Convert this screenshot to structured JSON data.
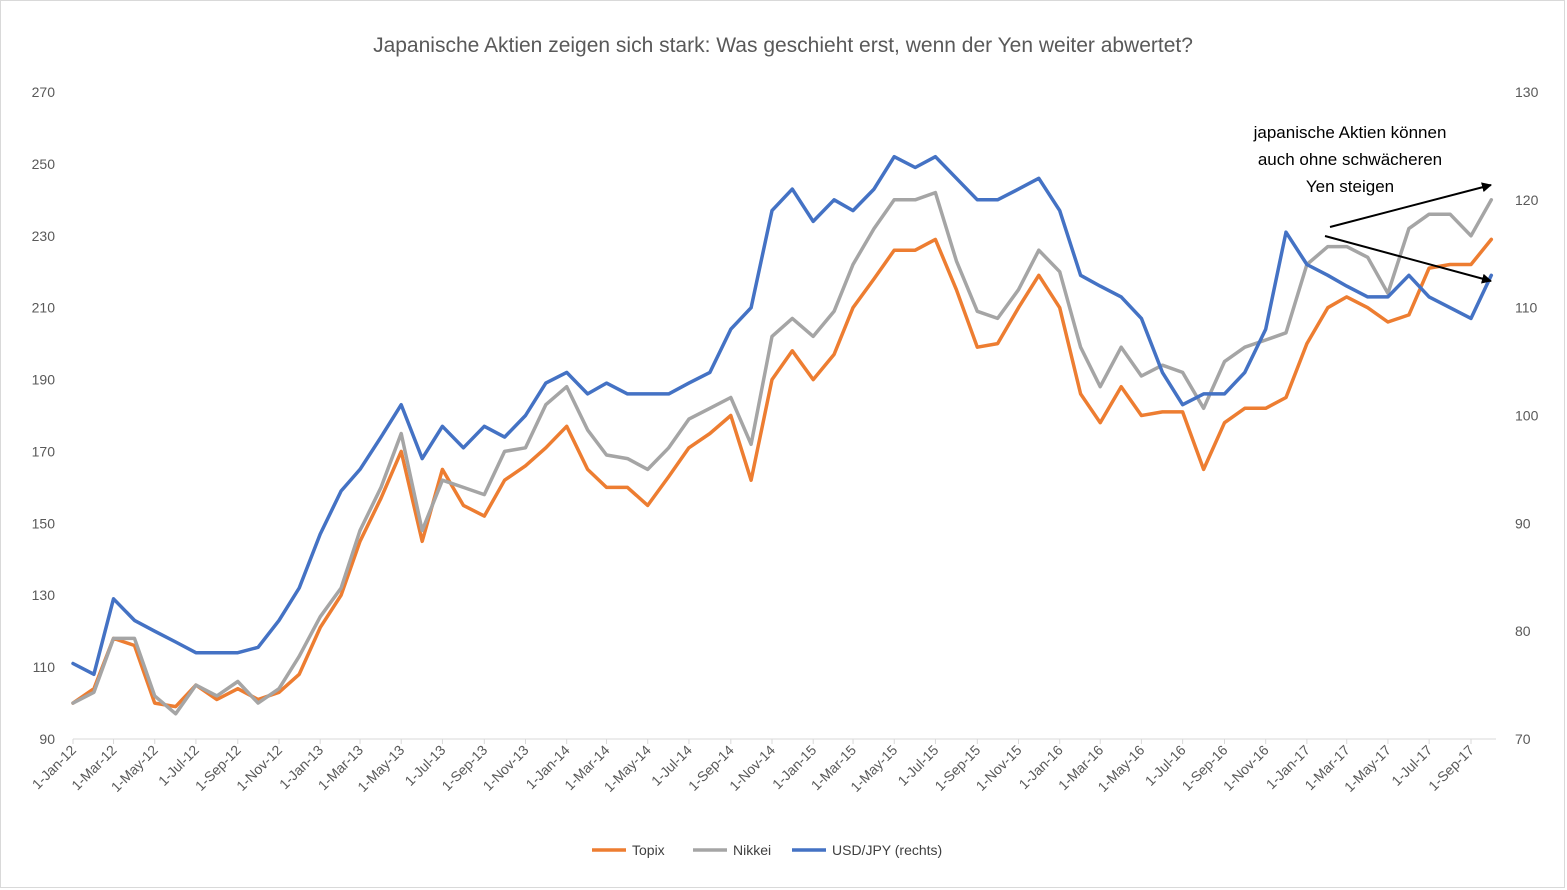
{
  "chart_data": {
    "type": "line",
    "title": "Japanische Aktien zeigen sich stark: Was geschieht erst, wenn der Yen weiter abwertet?",
    "xlabel": "",
    "ylabel": "",
    "ylim": [
      90,
      270
    ],
    "y2lim": [
      70,
      130
    ],
    "yticks": [
      90,
      110,
      130,
      150,
      170,
      190,
      210,
      230,
      250,
      270
    ],
    "y2ticks": [
      70,
      80,
      90,
      100,
      110,
      120,
      130
    ],
    "xticks": [
      "1-Jan-12",
      "1-Mar-12",
      "1-May-12",
      "1-Jul-12",
      "1-Sep-12",
      "1-Nov-12",
      "1-Jan-13",
      "1-Mar-13",
      "1-May-13",
      "1-Jul-13",
      "1-Sep-13",
      "1-Nov-13",
      "1-Jan-14",
      "1-Mar-14",
      "1-May-14",
      "1-Jul-14",
      "1-Sep-14",
      "1-Nov-14",
      "1-Jan-15",
      "1-Mar-15",
      "1-May-15",
      "1-Jul-15",
      "1-Sep-15",
      "1-Nov-15",
      "1-Jan-16",
      "1-Mar-16",
      "1-May-16",
      "1-Jul-16",
      "1-Sep-16",
      "1-Nov-16",
      "1-Jan-17",
      "1-Mar-17",
      "1-May-17",
      "1-Jul-17",
      "1-Sep-17"
    ],
    "x_dates": [
      "2012-01-01",
      "2012-02-01",
      "2012-03-01",
      "2012-04-01",
      "2012-05-01",
      "2012-06-01",
      "2012-07-01",
      "2012-08-01",
      "2012-09-01",
      "2012-10-01",
      "2012-11-01",
      "2012-12-01",
      "2013-01-01",
      "2013-02-01",
      "2013-03-01",
      "2013-04-01",
      "2013-05-01",
      "2013-06-01",
      "2013-07-01",
      "2013-08-01",
      "2013-09-01",
      "2013-10-01",
      "2013-11-01",
      "2013-12-01",
      "2014-01-01",
      "2014-02-01",
      "2014-03-01",
      "2014-04-01",
      "2014-05-01",
      "2014-06-01",
      "2014-07-01",
      "2014-08-01",
      "2014-09-01",
      "2014-10-01",
      "2014-11-01",
      "2014-12-01",
      "2015-01-01",
      "2015-02-01",
      "2015-03-01",
      "2015-04-01",
      "2015-05-01",
      "2015-06-01",
      "2015-07-01",
      "2015-08-01",
      "2015-09-01",
      "2015-10-01",
      "2015-11-01",
      "2015-12-01",
      "2016-01-01",
      "2016-02-01",
      "2016-03-01",
      "2016-04-01",
      "2016-05-01",
      "2016-06-01",
      "2016-07-01",
      "2016-08-01",
      "2016-09-01",
      "2016-10-01",
      "2016-11-01",
      "2016-12-01",
      "2017-01-01",
      "2017-02-01",
      "2017-03-01",
      "2017-04-01",
      "2017-05-01",
      "2017-06-01",
      "2017-07-01",
      "2017-08-01",
      "2017-09-01",
      "2017-10-01"
    ],
    "series": [
      {
        "name": "Topix",
        "color": "#ED7D31",
        "axis": "left",
        "values": [
          100,
          104,
          118,
          116,
          100,
          99,
          105,
          101,
          104,
          101,
          103,
          108,
          121,
          130,
          145,
          157,
          170,
          145,
          165,
          155,
          152,
          162,
          166,
          171,
          177,
          165,
          160,
          160,
          155,
          163,
          171,
          175,
          180,
          162,
          190,
          198,
          190,
          197,
          210,
          218,
          226,
          226,
          229,
          215,
          199,
          200,
          210,
          219,
          210,
          186,
          178,
          188,
          180,
          181,
          181,
          165,
          178,
          182,
          182,
          185,
          200,
          210,
          213,
          210,
          206,
          208,
          221,
          222,
          222,
          229
        ]
      },
      {
        "name": "Nikkei",
        "color": "#A5A5A5",
        "axis": "left",
        "values": [
          100,
          103,
          118,
          118,
          102,
          97,
          105,
          102,
          106,
          100,
          104,
          113,
          124,
          132,
          148,
          160,
          175,
          148,
          162,
          160,
          158,
          170,
          171,
          183,
          188,
          176,
          169,
          168,
          165,
          171,
          179,
          182,
          185,
          172,
          202,
          207,
          202,
          209,
          222,
          232,
          240,
          240,
          242,
          223,
          209,
          207,
          215,
          226,
          220,
          199,
          188,
          199,
          191,
          194,
          192,
          182,
          195,
          199,
          201,
          203,
          222,
          227,
          227,
          224,
          214,
          232,
          236,
          236,
          230,
          240
        ]
      },
      {
        "name": "USD/JPY (rechts)",
        "color": "#4472C4",
        "axis": "right",
        "values": [
          77,
          76,
          83,
          81,
          80,
          79,
          78,
          78,
          78,
          78.5,
          81,
          84,
          89,
          93,
          95,
          98,
          101,
          96,
          99,
          97,
          99,
          98,
          100,
          103,
          104,
          102,
          103,
          102,
          102,
          102,
          103,
          104,
          108,
          110,
          119,
          121,
          118,
          120,
          119,
          121,
          124,
          123,
          124,
          122,
          120,
          120,
          121,
          122,
          119,
          113,
          112,
          111,
          109,
          104,
          101,
          102,
          102,
          104,
          108,
          117,
          114,
          113,
          112,
          111,
          111,
          113,
          111,
          110,
          109,
          113
        ]
      }
    ],
    "legend": {
      "position": "bottom",
      "entries": [
        "Topix",
        "Nikkei",
        "USD/JPY (rechts)"
      ]
    },
    "annotation": {
      "lines": [
        "japanische Aktien können",
        "auch ohne schwächeren",
        "Yen steigen"
      ]
    },
    "grid": false
  }
}
